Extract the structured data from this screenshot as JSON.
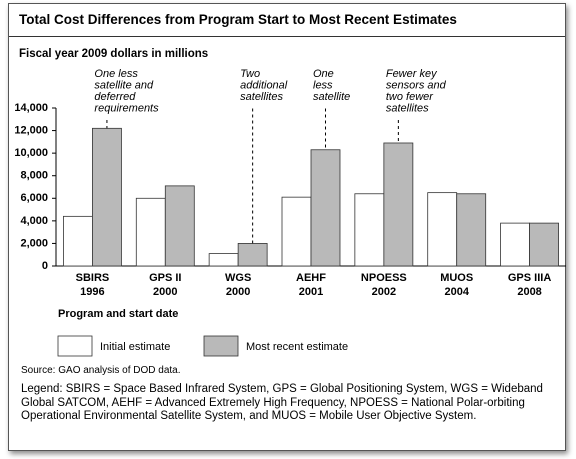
{
  "chart_data": {
    "type": "bar",
    "title": "Total Cost Differences from Program Start to Most Recent Estimates",
    "subtitle": "Fiscal year 2009 dollars in millions",
    "x_label": "Program and start date",
    "categories": [
      "SBIRS",
      "GPS II",
      "WGS",
      "AEHF",
      "NPOESS",
      "MUOS",
      "GPS IIIA"
    ],
    "years": [
      "1996",
      "2000",
      "2000",
      "2001",
      "2002",
      "2004",
      "2008"
    ],
    "series": [
      {
        "name": "Initial estimate",
        "color": "#ffffff",
        "values": [
          4400,
          6000,
          1100,
          6100,
          6400,
          6500,
          3800
        ]
      },
      {
        "name": "Most recent estimate",
        "color": "#b9b9b9",
        "values": [
          12200,
          7100,
          2000,
          10300,
          10900,
          6400,
          3800
        ]
      }
    ],
    "ylim": [
      0,
      14000
    ],
    "yticks": [
      0,
      {
        "value": 2000,
        "label": "2,000"
      },
      {
        "value": 4000,
        "label": "4,000"
      },
      {
        "value": 6000,
        "label": "6,000"
      },
      {
        "value": 8000,
        "label": "8,000"
      },
      {
        "value": 10000,
        "label": "10,000"
      },
      {
        "value": 12000,
        "label": "12,000"
      },
      {
        "value": 14000,
        "label": "14,000"
      }
    ],
    "annotations": [
      {
        "category": "SBIRS",
        "lines": [
          "One less",
          "satellite and",
          "deferred",
          "requirements"
        ]
      },
      {
        "category": "WGS",
        "lines": [
          "Two",
          "additional",
          "satellites"
        ]
      },
      {
        "category": "AEHF",
        "lines": [
          "One",
          "less",
          "satellite"
        ]
      },
      {
        "category": "NPOESS",
        "lines": [
          "Fewer key",
          "sensors and",
          "two fewer",
          "satellites"
        ]
      }
    ],
    "source": "Source: GAO analysis of DOD data.",
    "note": "Legend: SBIRS = Space Based Infrared System, GPS = Global Positioning System, WGS = Wideband Global SATCOM, AEHF = Advanced Extremely High Frequency, NPOESS = National Polar-orbiting Operational Environmental Satellite System, and MUOS = Mobile User Objective System."
  }
}
